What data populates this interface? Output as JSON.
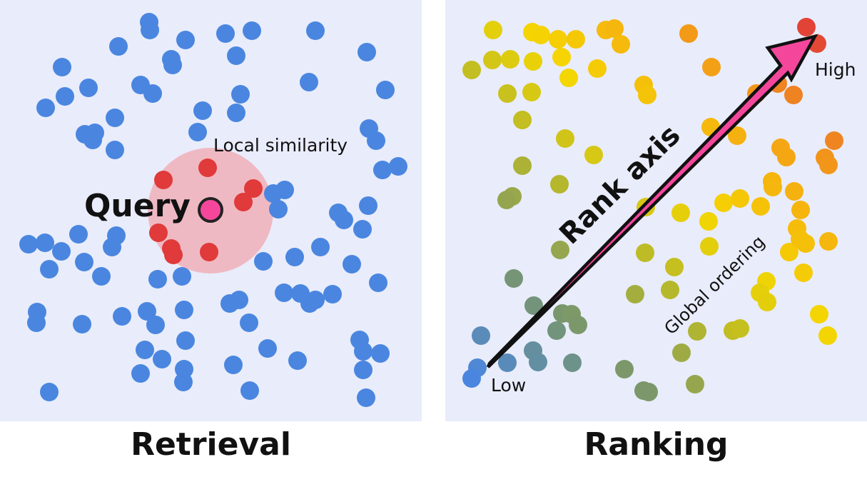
{
  "retrieval": {
    "caption": "Retrieval",
    "query_label": "Query",
    "region_label": "Local similarity",
    "colors": {
      "point": "#4a86e0",
      "neighbor": "#e03a3a",
      "query": "#f4479c",
      "region": "#f0a8b0"
    }
  },
  "ranking": {
    "caption": "Ranking",
    "axis_label": "Rank axis",
    "low_label": "Low",
    "high_label": "High",
    "ordering_label": "Global ordering",
    "colors": {
      "arrow": "#f4479c",
      "low": "#4a86e0",
      "mid": "#f5d800",
      "high": "#e03a3a"
    }
  }
}
